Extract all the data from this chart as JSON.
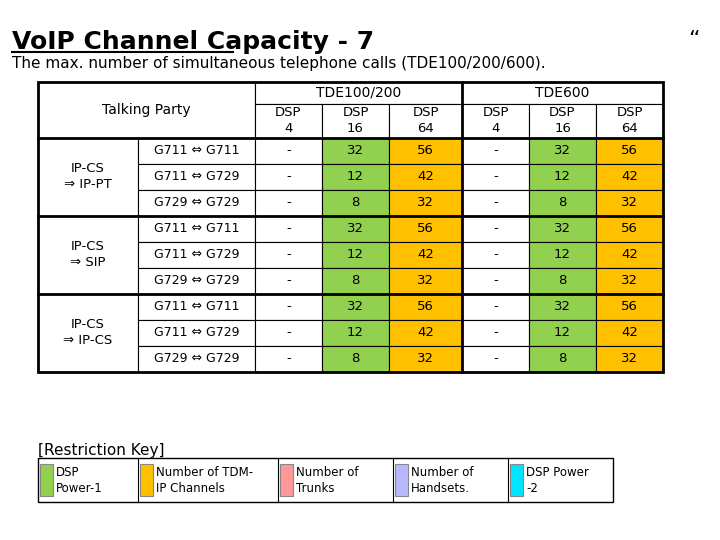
{
  "title": "VoIP Channel Capacity - 7",
  "subtitle": "The max. number of simultaneous telephone calls (TDE100/200/600).",
  "quote_mark": "“",
  "background_color": "#ffffff",
  "table": {
    "row_groups": [
      {
        "label": "IP-CS\n⇒ IP-PT",
        "rows": [
          {
            "codec": "G711 ⇔ G711",
            "vals": [
              "-",
              "32",
              "56",
              "-",
              "32",
              "56"
            ]
          },
          {
            "codec": "G711 ⇔ G729",
            "vals": [
              "-",
              "12",
              "42",
              "-",
              "12",
              "42"
            ]
          },
          {
            "codec": "G729 ⇔ G729",
            "vals": [
              "-",
              "8",
              "32",
              "-",
              "8",
              "32"
            ]
          }
        ]
      },
      {
        "label": "IP-CS\n⇒ SIP",
        "rows": [
          {
            "codec": "G711 ⇔ G711",
            "vals": [
              "-",
              "32",
              "56",
              "-",
              "32",
              "56"
            ]
          },
          {
            "codec": "G711 ⇔ G729",
            "vals": [
              "-",
              "12",
              "42",
              "-",
              "12",
              "42"
            ]
          },
          {
            "codec": "G729 ⇔ G729",
            "vals": [
              "-",
              "8",
              "32",
              "-",
              "8",
              "32"
            ]
          }
        ]
      },
      {
        "label": "IP-CS\n⇒ IP-CS",
        "rows": [
          {
            "codec": "G711 ⇔ G711",
            "vals": [
              "-",
              "32",
              "56",
              "-",
              "32",
              "56"
            ]
          },
          {
            "codec": "G711 ⇔ G729",
            "vals": [
              "-",
              "12",
              "42",
              "-",
              "12",
              "42"
            ]
          },
          {
            "codec": "G729 ⇔ G729",
            "vals": [
              "-",
              "8",
              "32",
              "-",
              "8",
              "32"
            ]
          }
        ]
      }
    ],
    "val_colors": [
      "#ffffff",
      "#92d050",
      "#ffc000",
      "#ffffff",
      "#92d050",
      "#ffc000"
    ]
  },
  "restriction_key": {
    "label": "[Restriction Key]",
    "items": [
      {
        "color": "#92d050",
        "text": "DSP\nPower-1"
      },
      {
        "color": "#ffc000",
        "text": "Number of TDM-\nIP Channels"
      },
      {
        "color": "#ff9999",
        "text": "Number of\nTrunks"
      },
      {
        "color": "#b8b8ff",
        "text": "Number of\nHandsets."
      },
      {
        "color": "#00e5ff",
        "text": "DSP Power\n-2"
      }
    ],
    "item_widths": [
      100,
      140,
      115,
      115,
      105
    ]
  }
}
